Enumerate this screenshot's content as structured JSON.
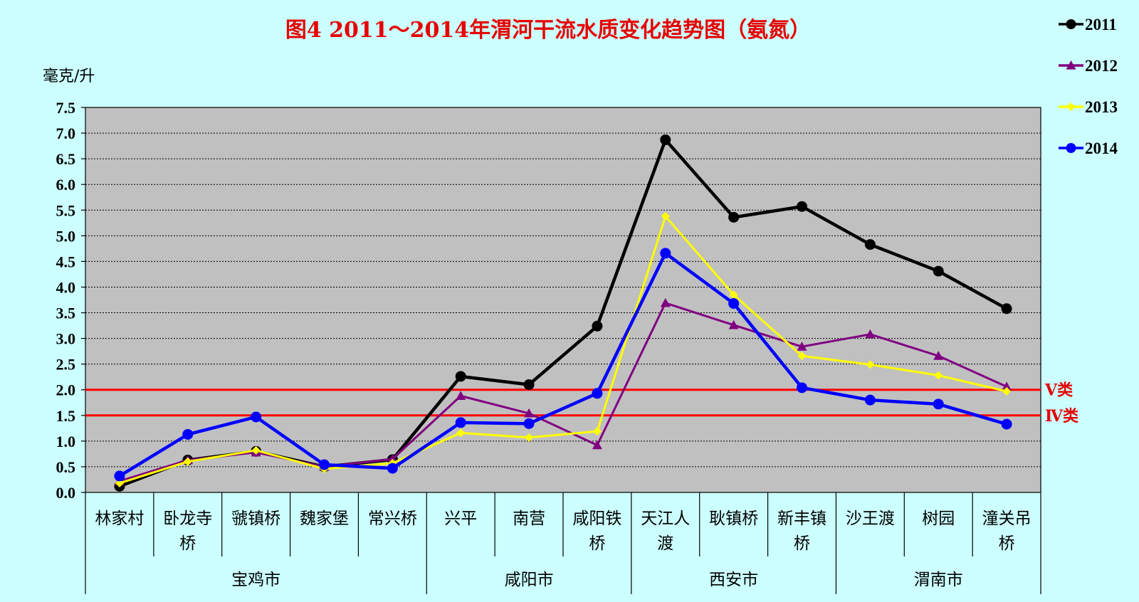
{
  "chart_data": {
    "type": "line",
    "title": "图4  2011～2014年渭河干流水质变化趋势图（氨氮）",
    "ylabel": "毫克/升",
    "ylim": [
      0,
      7.5
    ],
    "ytick_step": 0.5,
    "grid": true,
    "legend_position": "top-right",
    "categories": [
      [
        "林家村"
      ],
      [
        "卧龙寺",
        "桥"
      ],
      [
        "虢镇桥"
      ],
      [
        "魏家堡"
      ],
      [
        "常兴桥"
      ],
      [
        "兴平"
      ],
      [
        "南营"
      ],
      [
        "咸阳铁",
        "桥"
      ],
      [
        "天江人",
        "渡"
      ],
      [
        "耿镇桥"
      ],
      [
        "新丰镇",
        "桥"
      ],
      [
        "沙王渡"
      ],
      [
        "树园"
      ],
      [
        "潼关吊",
        "桥"
      ]
    ],
    "groups": [
      {
        "name": "宝鸡市",
        "span": [
          0,
          4
        ]
      },
      {
        "name": "咸阳市",
        "span": [
          5,
          7
        ]
      },
      {
        "name": "西安市",
        "span": [
          8,
          10
        ]
      },
      {
        "name": "渭南市",
        "span": [
          11,
          13
        ]
      }
    ],
    "series": [
      {
        "name": "2011",
        "color": "#000000",
        "marker": "circle",
        "values": [
          0.12,
          0.63,
          0.8,
          0.5,
          0.64,
          2.26,
          2.1,
          3.24,
          6.87,
          5.36,
          5.57,
          4.83,
          4.31,
          3.58
        ]
      },
      {
        "name": "2012",
        "color": "#800080",
        "marker": "triangle",
        "values": [
          0.22,
          0.63,
          0.78,
          0.5,
          0.65,
          1.88,
          1.54,
          0.92,
          3.69,
          3.26,
          2.84,
          3.08,
          2.66,
          2.06
        ]
      },
      {
        "name": "2013",
        "color": "#ffff00",
        "marker": "diamond",
        "values": [
          0.18,
          0.6,
          0.82,
          0.46,
          0.57,
          1.16,
          1.07,
          1.19,
          5.38,
          3.85,
          2.66,
          2.49,
          2.28,
          1.97
        ]
      },
      {
        "name": "2014",
        "color": "#0000ff",
        "marker": "circle",
        "values": [
          0.32,
          1.13,
          1.47,
          0.54,
          0.47,
          1.36,
          1.34,
          1.93,
          4.66,
          3.68,
          2.04,
          1.8,
          1.72,
          1.33
        ]
      }
    ],
    "reference_lines": [
      {
        "label": "Ⅴ类",
        "value": 2.0,
        "color": "#ff0000"
      },
      {
        "label": "Ⅳ类",
        "value": 1.5,
        "color": "#ff0000"
      }
    ],
    "colors": {
      "page_background": "#ccffff",
      "plot_background": "#c0c0c0",
      "title": "#e60000"
    }
  }
}
